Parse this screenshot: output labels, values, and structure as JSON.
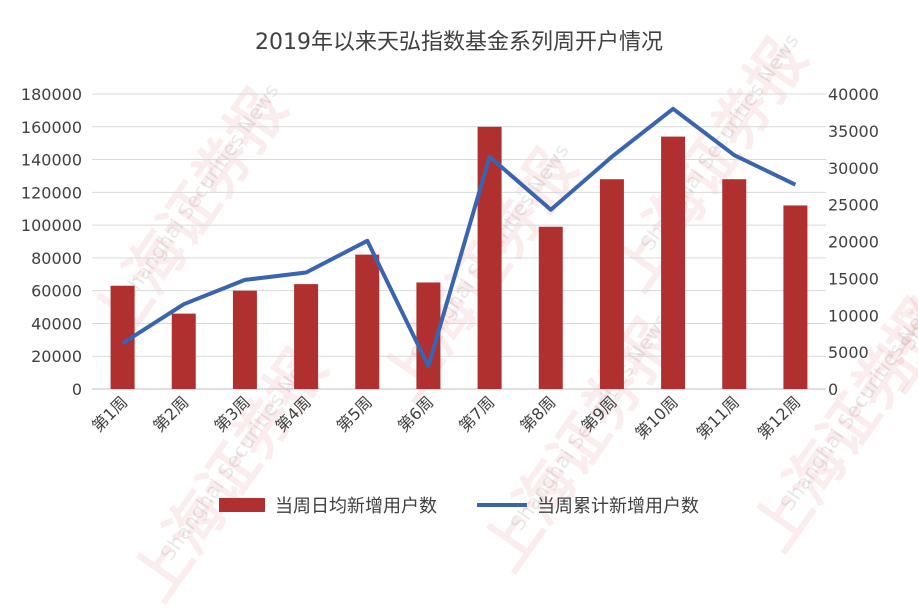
{
  "chart_data": {
    "type": "bar",
    "title": "2019年以来天弘指数基金系列周开户情况",
    "categories": [
      "第1周",
      "第2周",
      "第3周",
      "第4周",
      "第5周",
      "第6周",
      "第7周",
      "第8周",
      "第9周",
      "第10周",
      "第11周",
      "第12周"
    ],
    "series": [
      {
        "name": "当周日均新增用户数",
        "type": "bar",
        "axis": "left",
        "color": "#b03030",
        "values": [
          63000,
          46000,
          60000,
          64000,
          82000,
          65000,
          160000,
          99000,
          128000,
          154000,
          128000,
          112000
        ]
      },
      {
        "name": "当周累计新增用户数",
        "type": "line",
        "axis": "right",
        "color": "#3a64b0",
        "values": [
          6200,
          11500,
          14800,
          15800,
          20100,
          3100,
          31500,
          24300,
          31500,
          38000,
          31700,
          27700
        ]
      }
    ],
    "y_left": {
      "ylim": [
        0,
        180000
      ],
      "ticks": [
        "0",
        "20000",
        "40000",
        "60000",
        "80000",
        "100000",
        "120000",
        "140000",
        "160000",
        "180000"
      ]
    },
    "y_right": {
      "ylim": [
        0,
        40000
      ],
      "ticks": [
        "0",
        "5000",
        "10000",
        "15000",
        "20000",
        "25000",
        "30000",
        "35000",
        "40000"
      ]
    },
    "grid": true,
    "legend_position": "bottom",
    "watermark_text": [
      "上海证券报",
      "Shanghai Securities News"
    ]
  }
}
